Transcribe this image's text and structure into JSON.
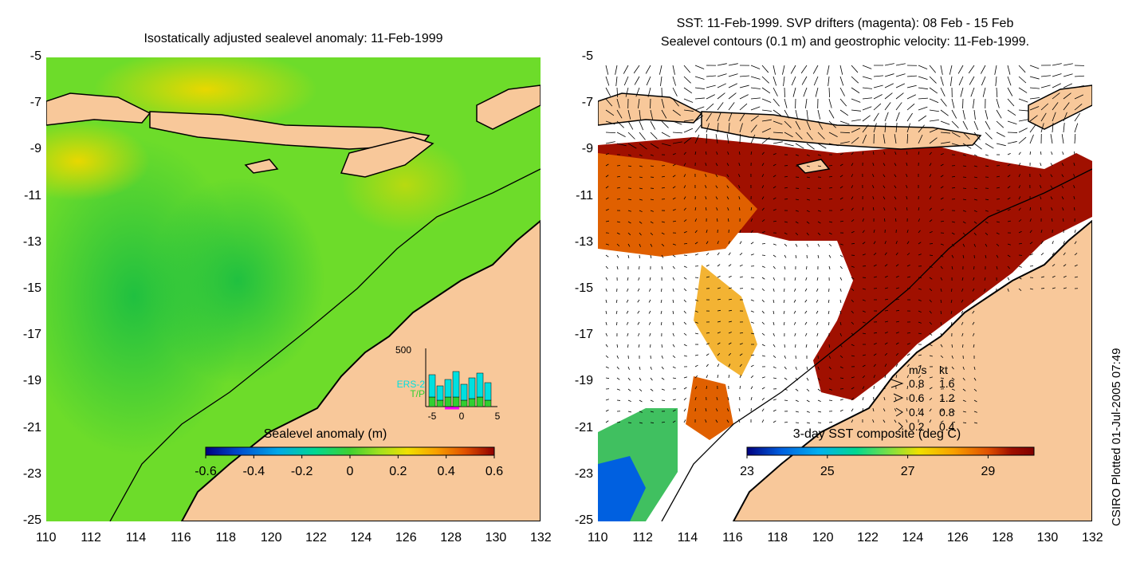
{
  "left_map": {
    "title": "Isostatically adjusted sealevel anomaly: 11-Feb-1999",
    "colorbar": {
      "label": "Sealevel anomaly (m)",
      "ticks": [
        "-0.6",
        "-0.4",
        "-0.2",
        "0",
        "0.2",
        "0.4",
        "0.6"
      ],
      "colors": [
        "#000080",
        "#0050d0",
        "#00a8e8",
        "#00d890",
        "#40d030",
        "#a0e020",
        "#f0e000",
        "#f8a000",
        "#e05000",
        "#900000"
      ]
    },
    "inset_histogram": {
      "y_max_label": "500",
      "series_labels": [
        "ERS-2",
        "T/P"
      ],
      "x_ticks": [
        "-5",
        "0",
        "5"
      ],
      "series_colors": {
        "ERS-2": "#00e0e0",
        "T/P": "#30d030"
      }
    }
  },
  "right_map": {
    "title_line1": "SST: 11-Feb-1999. SVP drifters (magenta): 08 Feb - 15 Feb",
    "title_line2": "Sealevel contours (0.1 m) and geostrophic velocity: 11-Feb-1999.",
    "colorbar": {
      "label": "3-day SST composite (deg C)",
      "ticks": [
        "23",
        "25",
        "27",
        "29"
      ],
      "colors": [
        "#000080",
        "#0060e0",
        "#00b0f0",
        "#00d890",
        "#80e040",
        "#f0e000",
        "#f8a000",
        "#e05000",
        "#a01000",
        "#800000"
      ]
    },
    "velocity_legend": {
      "header_ms": "m/s",
      "header_kt": "kt",
      "rows": [
        {
          "ms": "0.8",
          "kt": "1.6"
        },
        {
          "ms": "0.6",
          "kt": "1.2"
        },
        {
          "ms": "0.4",
          "kt": "0.8"
        },
        {
          "ms": "0.2",
          "kt": "0.4"
        }
      ]
    }
  },
  "axes": {
    "x_ticks": [
      "110",
      "112",
      "114",
      "116",
      "118",
      "120",
      "122",
      "124",
      "126",
      "128",
      "130",
      "132"
    ],
    "y_ticks": [
      "-5",
      "-7",
      "-9",
      "-11",
      "-13",
      "-15",
      "-17",
      "-19",
      "-21",
      "-23",
      "-25"
    ]
  },
  "colors": {
    "land": "#f8c89a",
    "ocean_green": "#58d838",
    "sst_red": "#a01000",
    "coast": "#000000"
  },
  "credit": "CSIRO Plotted 01-Jul-2005 07:49"
}
